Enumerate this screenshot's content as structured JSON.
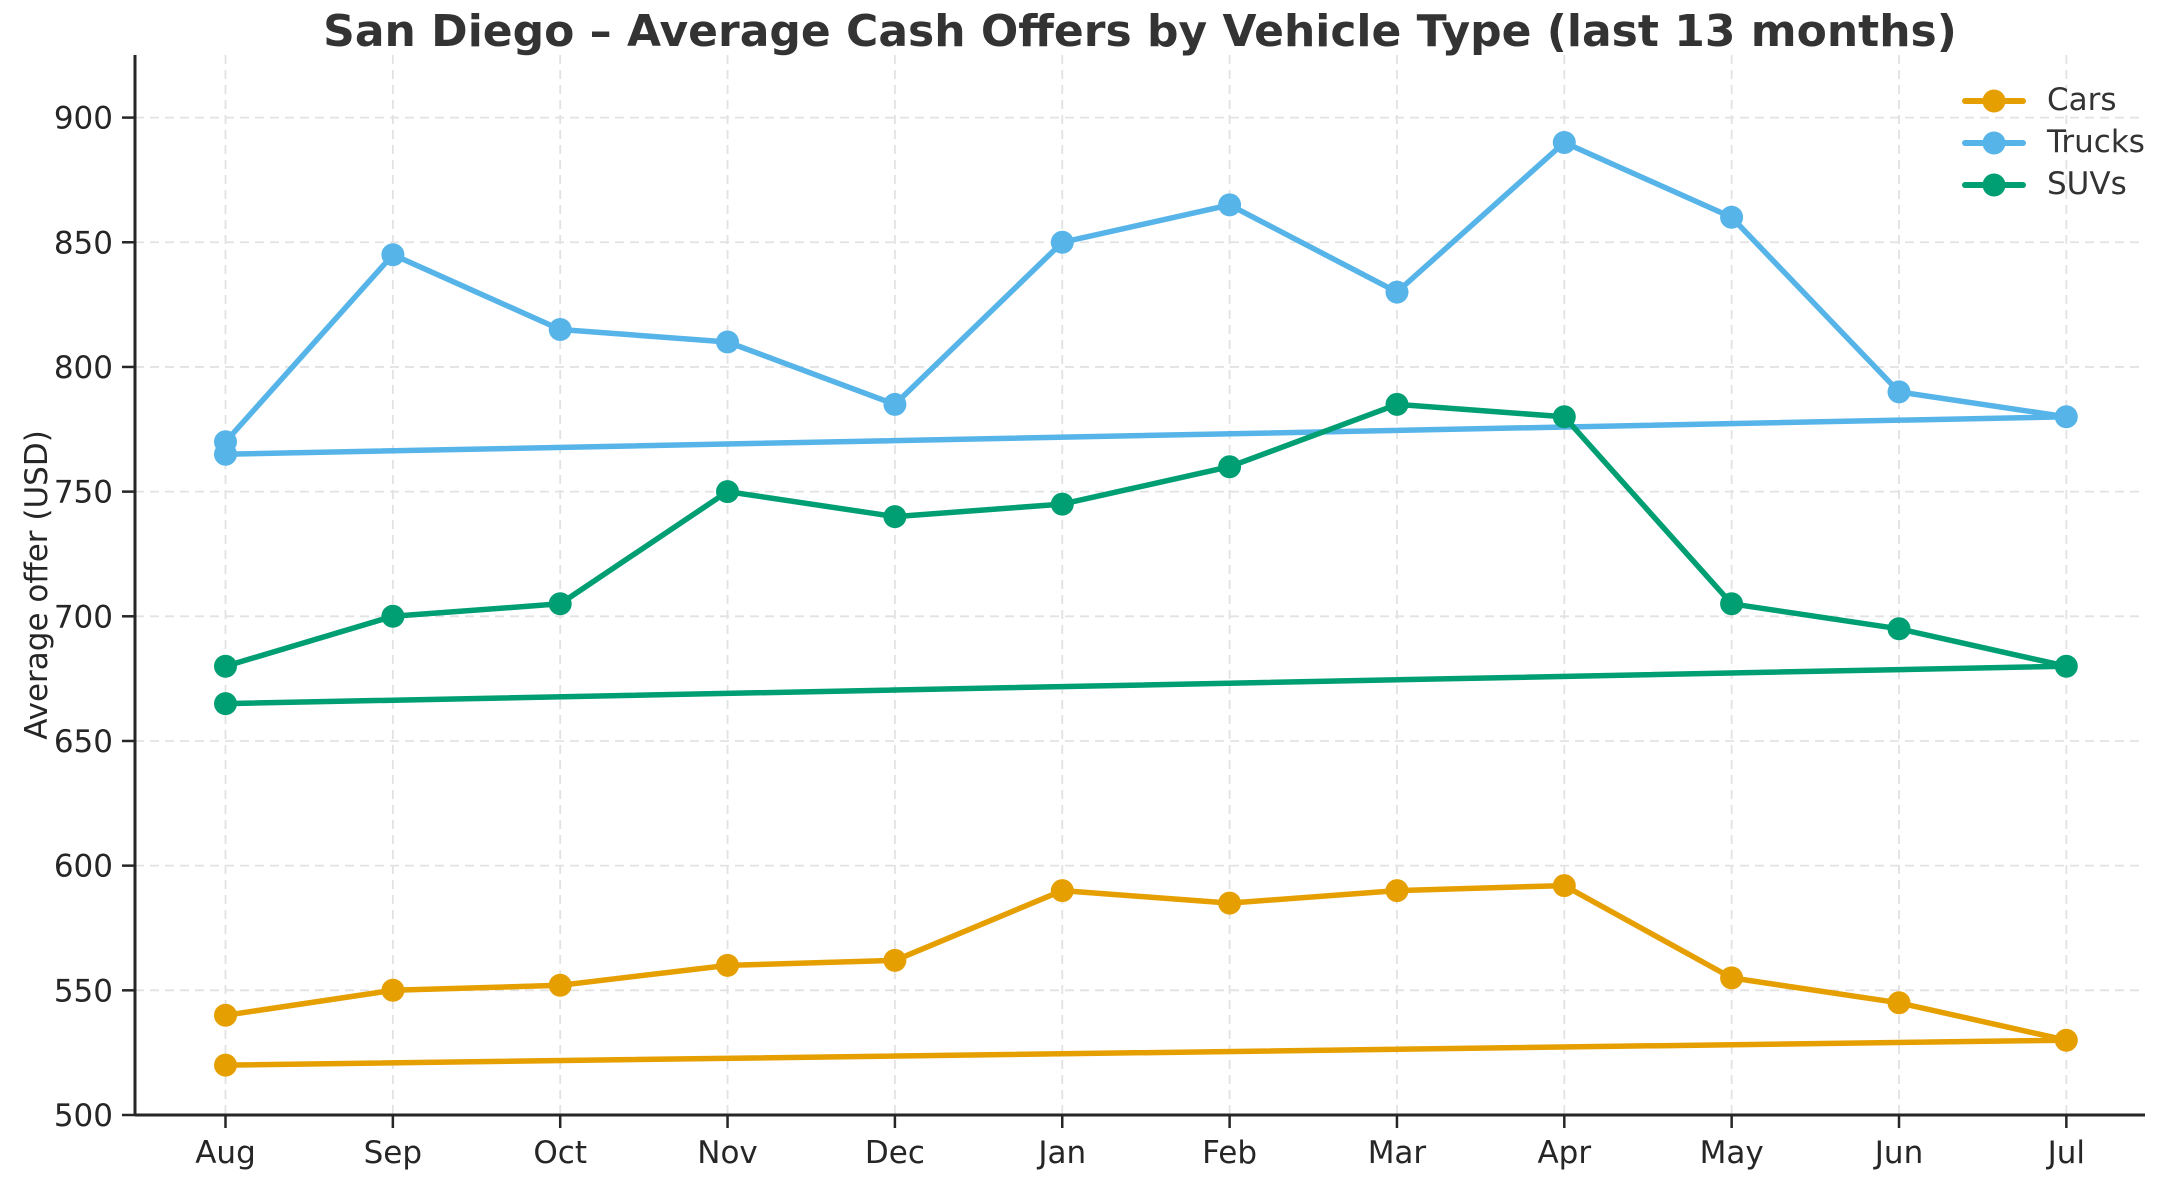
{
  "chart_data": {
    "type": "line",
    "title": "San Diego – Average Cash Offers by Vehicle Type (last 13 months)",
    "xlabel": "",
    "ylabel": "Average offer (USD)",
    "x_tick_labels": [
      "Aug",
      "Sep",
      "Oct",
      "Nov",
      "Dec",
      "Jan",
      "Feb",
      "Mar",
      "Apr",
      "May",
      "Jun",
      "Jul"
    ],
    "months": [
      "Aug",
      "Sep",
      "Oct",
      "Nov",
      "Dec",
      "Jan",
      "Feb",
      "Mar",
      "Apr",
      "May",
      "Jun",
      "Jul",
      "Aug"
    ],
    "x_index": [
      0,
      1,
      2,
      3,
      4,
      5,
      6,
      7,
      8,
      9,
      10,
      11,
      0
    ],
    "series": [
      {
        "name": "Cars",
        "color": "#E69F00",
        "values": [
          540,
          550,
          552,
          560,
          562,
          590,
          585,
          590,
          592,
          555,
          545,
          530,
          520
        ]
      },
      {
        "name": "Trucks",
        "color": "#56B4E9",
        "values": [
          770,
          845,
          815,
          810,
          785,
          850,
          865,
          830,
          890,
          860,
          790,
          780,
          765
        ]
      },
      {
        "name": "SUVs",
        "color": "#009E73",
        "values": [
          680,
          700,
          705,
          750,
          740,
          745,
          760,
          785,
          780,
          705,
          695,
          680,
          665
        ]
      }
    ],
    "y_ticks": [
      500,
      550,
      600,
      650,
      700,
      750,
      800,
      850,
      900
    ],
    "ylim": [
      500,
      925
    ],
    "grid": true,
    "grid_style": "dashed",
    "legend_position": "upper right",
    "text_color": "#262626",
    "grid_color": "#e2e2e2",
    "spine_color": "#262626"
  }
}
